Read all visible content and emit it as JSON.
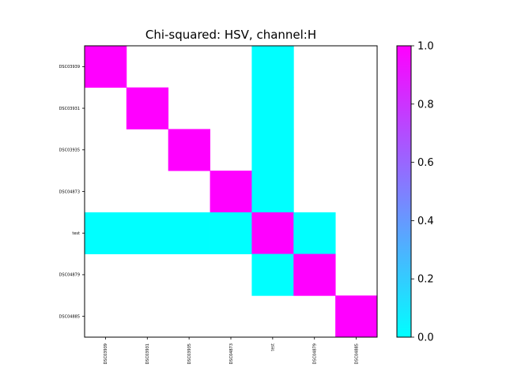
{
  "chart_data": {
    "type": "heatmap",
    "title": "Chi-squared: HSV, channel:H",
    "xlabel": "",
    "ylabel": "",
    "x_categories": [
      "DSC03939",
      "DSC03931",
      "DSC03935",
      "DSC04873",
      "test",
      "DSC04879",
      "DSC04885"
    ],
    "y_categories": [
      "DSC03939",
      "DSC03931",
      "DSC03935",
      "DSC04873",
      "test",
      "DSC04879",
      "DSC04885"
    ],
    "values": [
      [
        1,
        null,
        null,
        null,
        0,
        null,
        null
      ],
      [
        null,
        1,
        null,
        null,
        0,
        null,
        null
      ],
      [
        null,
        null,
        1,
        null,
        0,
        null,
        null
      ],
      [
        null,
        null,
        null,
        1,
        0,
        null,
        null
      ],
      [
        0,
        0,
        0,
        0,
        1,
        0,
        null
      ],
      [
        null,
        null,
        null,
        null,
        0,
        1,
        null
      ],
      [
        null,
        null,
        null,
        null,
        null,
        null,
        1
      ]
    ],
    "colormap": {
      "name": "cool",
      "low": "#00ffff",
      "high": "#ff00ff"
    },
    "colorbar": {
      "range": [
        0.0,
        1.0
      ],
      "ticks": [
        "0.0",
        "0.2",
        "0.4",
        "0.6",
        "0.8",
        "1.0"
      ],
      "tick_values": [
        0.0,
        0.2,
        0.4,
        0.6,
        0.8,
        1.0
      ]
    },
    "grid": false
  }
}
